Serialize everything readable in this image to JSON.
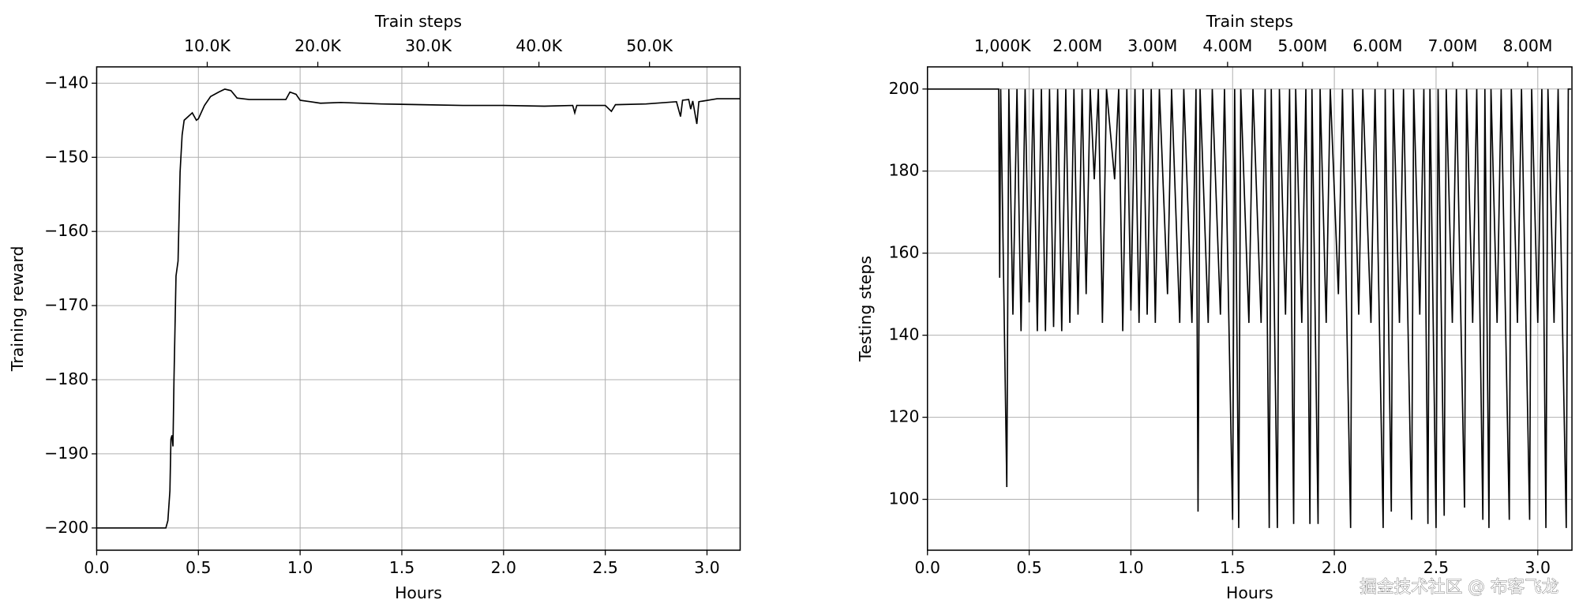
{
  "chart_data": [
    {
      "type": "line",
      "xlabel": "Hours",
      "ylabel": "Training reward",
      "x2label": "Train steps",
      "xlim": [
        0,
        3.163
      ],
      "ylim": [
        -203,
        -137.8
      ],
      "x2lim": [
        0,
        58200
      ],
      "grid": true,
      "xticks": [
        {
          "value": 0,
          "label": "0.0"
        },
        0.5,
        {
          "value": 1,
          "label": "1.0"
        },
        1.5,
        {
          "value": 2,
          "label": "2.0"
        },
        2.5,
        {
          "value": 3,
          "label": "3.0"
        }
      ],
      "yticks": [
        {
          "value": -200,
          "label": "−200"
        },
        {
          "value": -190,
          "label": "−190"
        },
        {
          "value": -180,
          "label": "−180"
        },
        {
          "value": -170,
          "label": "−170"
        },
        {
          "value": -160,
          "label": "−160"
        },
        {
          "value": -150,
          "label": "−150"
        },
        {
          "value": -140,
          "label": "−140"
        }
      ],
      "x2ticks": [
        {
          "value": 10000,
          "label": "10.0K"
        },
        {
          "value": 20000,
          "label": "20.0K"
        },
        {
          "value": 30000,
          "label": "30.0K"
        },
        {
          "value": 40000,
          "label": "40.0K"
        },
        {
          "value": 50000,
          "label": "50.0K"
        }
      ],
      "x": [
        0,
        0.34,
        0.35,
        0.36,
        0.365,
        0.37,
        0.375,
        0.38,
        0.39,
        0.4,
        0.41,
        0.42,
        0.43,
        0.45,
        0.47,
        0.49,
        0.5,
        0.53,
        0.56,
        0.6,
        0.63,
        0.66,
        0.69,
        0.75,
        0.85,
        0.93,
        0.95,
        0.98,
        1.0,
        1.05,
        1.1,
        1.2,
        1.4,
        1.6,
        1.8,
        2.0,
        2.2,
        2.34,
        2.35,
        2.36,
        2.5,
        2.53,
        2.55,
        2.7,
        2.85,
        2.87,
        2.88,
        2.91,
        2.92,
        2.93,
        2.95,
        2.96,
        3.05,
        3.163
      ],
      "series": [
        {
          "color": "#000000",
          "values": [
            -200,
            -200,
            -199,
            -195,
            -188,
            -187.5,
            -189,
            -180,
            -166,
            -164,
            -152,
            -147,
            -145,
            -144.5,
            -144,
            -145,
            -144.8,
            -143,
            -141.8,
            -141.2,
            -140.8,
            -141,
            -142,
            -142.2,
            -142.2,
            -142.2,
            -141.2,
            -141.5,
            -142.3,
            -142.5,
            -142.7,
            -142.6,
            -142.8,
            -142.9,
            -143,
            -143,
            -143.1,
            -143,
            -144,
            -143,
            -143,
            -143.8,
            -142.9,
            -142.8,
            -142.5,
            -144.5,
            -142.3,
            -142.2,
            -143.5,
            -142.4,
            -145.5,
            -142.5,
            -142.1,
            -142.1
          ]
        }
      ]
    },
    {
      "type": "line",
      "xlabel": "Hours",
      "ylabel": "Testing steps",
      "x2label": "Train steps",
      "xlim": [
        0,
        3.168
      ],
      "ylim": [
        87.6,
        205.4
      ],
      "x2lim": [
        0,
        8590000
      ],
      "grid": true,
      "xticks": [
        {
          "value": 0,
          "label": "0.0"
        },
        0.5,
        {
          "value": 1,
          "label": "1.0"
        },
        1.5,
        {
          "value": 2,
          "label": "2.0"
        },
        2.5,
        {
          "value": 3,
          "label": "3.0"
        }
      ],
      "yticks": [
        100,
        120,
        140,
        160,
        180,
        200
      ],
      "x2ticks": [
        {
          "value": 1000000,
          "label": "1,000K"
        },
        {
          "value": 2000000,
          "label": "2.00M"
        },
        {
          "value": 3000000,
          "label": "3.00M"
        },
        {
          "value": 4000000,
          "label": "4.00M"
        },
        {
          "value": 5000000,
          "label": "5.00M"
        },
        {
          "value": 6000000,
          "label": "6.00M"
        },
        {
          "value": 7000000,
          "label": "7.00M"
        },
        {
          "value": 8000000,
          "label": "8.00M"
        }
      ],
      "x": [
        0,
        0.35,
        0.355,
        0.36,
        0.39,
        0.4,
        0.42,
        0.44,
        0.46,
        0.48,
        0.5,
        0.52,
        0.54,
        0.56,
        0.58,
        0.6,
        0.62,
        0.64,
        0.66,
        0.68,
        0.7,
        0.72,
        0.74,
        0.76,
        0.78,
        0.8,
        0.82,
        0.84,
        0.86,
        0.88,
        0.92,
        0.94,
        0.96,
        0.98,
        1.0,
        1.02,
        1.04,
        1.06,
        1.08,
        1.1,
        1.12,
        1.14,
        1.18,
        1.2,
        1.24,
        1.26,
        1.3,
        1.32,
        1.33,
        1.34,
        1.38,
        1.4,
        1.44,
        1.46,
        1.5,
        1.51,
        1.53,
        1.54,
        1.58,
        1.6,
        1.64,
        1.66,
        1.68,
        1.69,
        1.72,
        1.73,
        1.76,
        1.78,
        1.8,
        1.81,
        1.84,
        1.86,
        1.88,
        1.89,
        1.92,
        1.93,
        1.96,
        1.98,
        2.02,
        2.04,
        2.08,
        2.09,
        2.12,
        2.14,
        2.18,
        2.2,
        2.24,
        2.25,
        2.28,
        2.29,
        2.32,
        2.34,
        2.38,
        2.39,
        2.42,
        2.44,
        2.46,
        2.47,
        2.5,
        2.51,
        2.54,
        2.55,
        2.58,
        2.6,
        2.64,
        2.65,
        2.68,
        2.7,
        2.73,
        2.74,
        2.76,
        2.77,
        2.8,
        2.82,
        2.86,
        2.87,
        2.9,
        2.92,
        2.96,
        2.97,
        3.0,
        3.02,
        3.04,
        3.05,
        3.08,
        3.1,
        3.14,
        3.15,
        3.163
      ],
      "series": [
        {
          "color": "#000000",
          "values": [
            200,
            200,
            154,
            200,
            103,
            200,
            145,
            200,
            141,
            200,
            148,
            200,
            141,
            200,
            141,
            200,
            142,
            200,
            141,
            200,
            143,
            200,
            145,
            200,
            150,
            200,
            178,
            200,
            143,
            200,
            178,
            200,
            141,
            200,
            146,
            200,
            143,
            200,
            145,
            200,
            143,
            200,
            150,
            200,
            143,
            200,
            143,
            200,
            97,
            200,
            143,
            200,
            145,
            200,
            95,
            200,
            93,
            200,
            143,
            200,
            143,
            200,
            93,
            200,
            93,
            200,
            145,
            200,
            94,
            200,
            143,
            200,
            94,
            200,
            94,
            200,
            143,
            200,
            150,
            200,
            93,
            200,
            145,
            200,
            143,
            200,
            93,
            200,
            97,
            200,
            143,
            200,
            95,
            200,
            145,
            200,
            94,
            200,
            93,
            200,
            96,
            200,
            143,
            200,
            98,
            200,
            143,
            200,
            95,
            200,
            93,
            200,
            143,
            200,
            95,
            200,
            143,
            200,
            95,
            200,
            143,
            200,
            93,
            200,
            143,
            200,
            93,
            200,
            200
          ]
        }
      ]
    }
  ],
  "watermark": "掘金技术社区 @ 布客飞龙"
}
